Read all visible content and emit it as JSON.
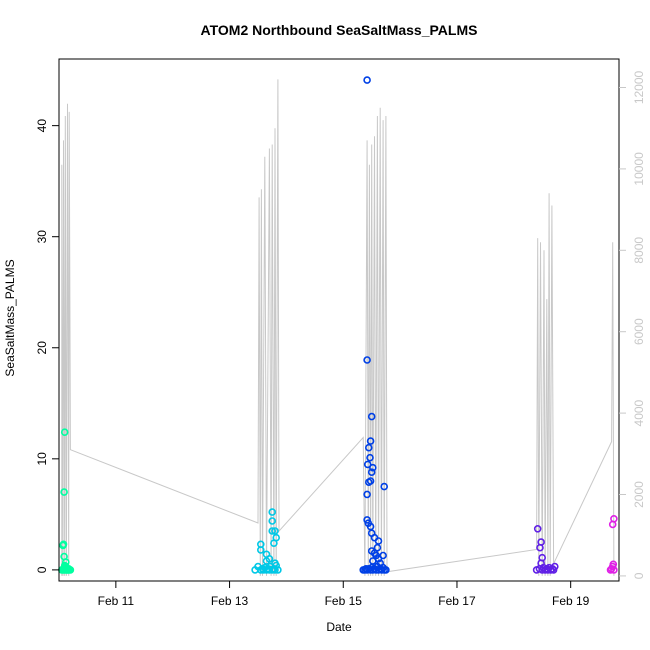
{
  "chart_data": {
    "type": "scatter",
    "title": "ATOM2 Northbound SeaSaltMass_PALMS",
    "xlabel": "Date",
    "ylabel": "SeaSaltMass_PALMS",
    "x_unit": "days in February (day-of-month, fractional)",
    "xlim": [
      10.0,
      19.85
    ],
    "ylim": [
      -1.0,
      46.0
    ],
    "y2lim": [
      -125,
      12700
    ],
    "x_ticks": [
      {
        "value": 11,
        "label": "Feb 11"
      },
      {
        "value": 13,
        "label": "Feb 13"
      },
      {
        "value": 15,
        "label": "Feb 15"
      },
      {
        "value": 17,
        "label": "Feb 17"
      },
      {
        "value": 19,
        "label": "Feb 19"
      }
    ],
    "y_ticks": [
      0,
      10,
      20,
      30,
      40
    ],
    "y2_ticks": [
      0,
      2000,
      4000,
      6000,
      8000,
      10000,
      12000
    ],
    "grid": false,
    "colors": {
      "flight_1": "#00ffa0",
      "flight_2": "#00c8e6",
      "flight_3": "#0040e6",
      "flight_4": "#6020e6",
      "flight_5": "#e020e6",
      "altitude_line": "#c8c8c8",
      "axis": "#000000",
      "secondary_axis": "#c8c8c8"
    },
    "series": [
      {
        "flight": 1,
        "color_key": "flight_1",
        "points": [
          [
            10.05,
            0
          ],
          [
            10.07,
            0
          ],
          [
            10.08,
            0.1
          ],
          [
            10.09,
            0
          ],
          [
            10.1,
            0.2
          ],
          [
            10.11,
            0
          ],
          [
            10.12,
            0.3
          ],
          [
            10.13,
            0
          ],
          [
            10.14,
            0.1
          ],
          [
            10.15,
            0
          ],
          [
            10.16,
            0
          ],
          [
            10.17,
            0.1
          ],
          [
            10.18,
            0
          ],
          [
            10.2,
            0
          ],
          [
            10.07,
            2.2
          ],
          [
            10.08,
            2.3
          ],
          [
            10.09,
            1.2
          ],
          [
            10.12,
            0.7
          ],
          [
            10.1,
            0.4
          ],
          [
            10.09,
            7.0
          ],
          [
            10.1,
            12.4
          ]
        ]
      },
      {
        "flight": 2,
        "color_key": "flight_2",
        "points": [
          [
            13.45,
            0
          ],
          [
            13.5,
            0.3
          ],
          [
            13.55,
            0
          ],
          [
            13.58,
            0.1
          ],
          [
            13.6,
            0
          ],
          [
            13.62,
            0.2
          ],
          [
            13.65,
            0
          ],
          [
            13.68,
            0.1
          ],
          [
            13.7,
            0
          ],
          [
            13.72,
            0.3
          ],
          [
            13.75,
            0
          ],
          [
            13.78,
            0.1
          ],
          [
            13.8,
            0
          ],
          [
            13.82,
            0.4
          ],
          [
            13.85,
            0
          ],
          [
            13.55,
            2.3
          ],
          [
            13.55,
            1.8
          ],
          [
            13.65,
            1.4
          ],
          [
            13.65,
            0.8
          ],
          [
            13.7,
            1.0
          ],
          [
            13.75,
            3.5
          ],
          [
            13.78,
            2.4
          ],
          [
            13.8,
            3.5
          ],
          [
            13.82,
            2.9
          ],
          [
            13.75,
            4.4
          ],
          [
            13.75,
            5.2
          ],
          [
            13.8,
            0.6
          ]
        ]
      },
      {
        "flight": 3,
        "color_key": "flight_3",
        "points": [
          [
            15.35,
            0
          ],
          [
            15.38,
            0
          ],
          [
            15.4,
            0.1
          ],
          [
            15.42,
            0
          ],
          [
            15.45,
            0.1
          ],
          [
            15.48,
            0
          ],
          [
            15.5,
            0.2
          ],
          [
            15.52,
            0
          ],
          [
            15.55,
            0.1
          ],
          [
            15.58,
            0
          ],
          [
            15.6,
            0.3
          ],
          [
            15.62,
            0
          ],
          [
            15.65,
            0.1
          ],
          [
            15.68,
            0
          ],
          [
            15.7,
            0.2
          ],
          [
            15.72,
            0
          ],
          [
            15.75,
            0
          ],
          [
            15.42,
            44.1
          ],
          [
            15.42,
            18.9
          ],
          [
            15.5,
            13.8
          ],
          [
            15.48,
            11.6
          ],
          [
            15.45,
            11.0
          ],
          [
            15.47,
            10.1
          ],
          [
            15.43,
            9.5
          ],
          [
            15.52,
            9.2
          ],
          [
            15.5,
            8.8
          ],
          [
            15.48,
            8.0
          ],
          [
            15.45,
            7.9
          ],
          [
            15.42,
            6.8
          ],
          [
            15.72,
            7.5
          ],
          [
            15.42,
            4.5
          ],
          [
            15.44,
            4.2
          ],
          [
            15.48,
            3.9
          ],
          [
            15.5,
            3.3
          ],
          [
            15.55,
            2.9
          ],
          [
            15.62,
            2.6
          ],
          [
            15.6,
            2.0
          ],
          [
            15.5,
            1.7
          ],
          [
            15.55,
            1.5
          ],
          [
            15.58,
            1.3
          ],
          [
            15.7,
            1.3
          ],
          [
            15.62,
            1.0
          ],
          [
            15.65,
            0.6
          ],
          [
            15.52,
            0.8
          ]
        ]
      },
      {
        "flight": 4,
        "color_key": "flight_4",
        "points": [
          [
            18.4,
            0
          ],
          [
            18.45,
            0.1
          ],
          [
            18.5,
            0
          ],
          [
            18.52,
            0.2
          ],
          [
            18.55,
            0
          ],
          [
            18.58,
            0.1
          ],
          [
            18.6,
            0
          ],
          [
            18.62,
            0.2
          ],
          [
            18.65,
            0
          ],
          [
            18.68,
            0.1
          ],
          [
            18.7,
            0
          ],
          [
            18.72,
            0.3
          ],
          [
            18.42,
            3.7
          ],
          [
            18.48,
            2.5
          ],
          [
            18.46,
            2.0
          ],
          [
            18.5,
            1.1
          ],
          [
            18.48,
            0.6
          ]
        ]
      },
      {
        "flight": 5,
        "color_key": "flight_5",
        "points": [
          [
            19.7,
            0
          ],
          [
            19.72,
            0.1
          ],
          [
            19.74,
            0.3
          ],
          [
            19.75,
            0.5
          ],
          [
            19.76,
            0
          ],
          [
            19.74,
            4.1
          ],
          [
            19.76,
            4.6
          ]
        ]
      }
    ],
    "altitude_line": [
      [
        10.05,
        0
      ],
      [
        10.05,
        10100
      ],
      [
        10.07,
        0
      ],
      [
        10.08,
        10700
      ],
      [
        10.1,
        0
      ],
      [
        10.11,
        11300
      ],
      [
        10.13,
        0
      ],
      [
        10.15,
        11600
      ],
      [
        10.17,
        0
      ],
      [
        10.18,
        11400
      ],
      [
        10.2,
        3100
      ],
      [
        13.5,
        1300
      ],
      [
        13.52,
        9300
      ],
      [
        13.54,
        0
      ],
      [
        13.56,
        9500
      ],
      [
        13.58,
        0
      ],
      [
        13.62,
        10300
      ],
      [
        13.65,
        0
      ],
      [
        13.7,
        10500
      ],
      [
        13.73,
        0
      ],
      [
        13.75,
        10600
      ],
      [
        13.78,
        0
      ],
      [
        13.8,
        11000
      ],
      [
        13.82,
        0
      ],
      [
        13.85,
        12200
      ],
      [
        13.87,
        1100
      ],
      [
        15.35,
        3400
      ],
      [
        15.38,
        0
      ],
      [
        15.42,
        10700
      ],
      [
        15.44,
        0
      ],
      [
        15.46,
        10100
      ],
      [
        15.48,
        0
      ],
      [
        15.5,
        10600
      ],
      [
        15.52,
        0
      ],
      [
        15.55,
        10800
      ],
      [
        15.57,
        0
      ],
      [
        15.6,
        11300
      ],
      [
        15.62,
        0
      ],
      [
        15.65,
        11500
      ],
      [
        15.67,
        0
      ],
      [
        15.7,
        11200
      ],
      [
        15.72,
        0
      ],
      [
        15.75,
        11300
      ],
      [
        15.77,
        100
      ],
      [
        18.4,
        650
      ],
      [
        18.42,
        8300
      ],
      [
        18.44,
        0
      ],
      [
        18.47,
        8200
      ],
      [
        18.5,
        0
      ],
      [
        18.53,
        8000
      ],
      [
        18.55,
        0
      ],
      [
        18.58,
        6800
      ],
      [
        18.6,
        0
      ],
      [
        18.62,
        9400
      ],
      [
        18.64,
        0
      ],
      [
        18.67,
        9100
      ],
      [
        18.7,
        300
      ],
      [
        19.72,
        3300
      ],
      [
        19.74,
        8200
      ],
      [
        19.76,
        0
      ]
    ]
  }
}
